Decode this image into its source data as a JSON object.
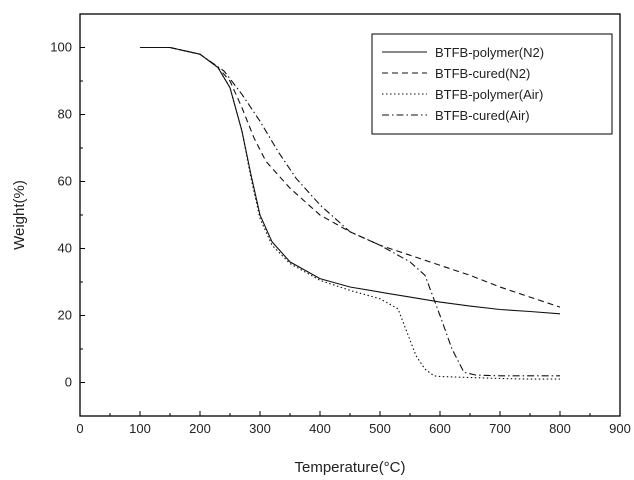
{
  "chart_data": {
    "type": "line",
    "xlabel": "Temperature(°C)",
    "ylabel": "Weight(%)",
    "xlim": [
      0,
      900
    ],
    "ylim": [
      -10,
      110
    ],
    "xticks": [
      0,
      100,
      200,
      300,
      400,
      500,
      600,
      700,
      800,
      900
    ],
    "yticks": [
      0,
      20,
      40,
      60,
      80,
      100
    ],
    "grid": false,
    "legend_position": "top-right",
    "series": [
      {
        "name": "BTFB-polymer(N2)",
        "style": "solid",
        "x": [
          100,
          150,
          200,
          230,
          250,
          270,
          285,
          300,
          320,
          350,
          400,
          450,
          500,
          550,
          600,
          650,
          700,
          750,
          800
        ],
        "y": [
          100,
          100,
          98,
          94,
          88,
          75,
          62,
          50,
          42,
          36,
          31,
          28.5,
          27,
          25.5,
          24,
          22.8,
          21.8,
          21.2,
          20.5
        ]
      },
      {
        "name": "BTFB-cured(N2)",
        "style": "dashed",
        "x": [
          100,
          150,
          200,
          230,
          250,
          270,
          290,
          310,
          330,
          350,
          400,
          450,
          500,
          550,
          600,
          650,
          700,
          750,
          800
        ],
        "y": [
          100,
          100,
          98,
          94,
          90,
          82,
          73,
          66,
          62,
          58,
          50,
          45,
          41,
          38,
          35,
          32,
          28.5,
          25.5,
          22.5
        ]
      },
      {
        "name": "BTFB-polymer(Air)",
        "style": "dotted",
        "x": [
          100,
          150,
          200,
          230,
          250,
          270,
          285,
          300,
          320,
          350,
          400,
          450,
          500,
          530,
          545,
          560,
          575,
          590,
          600,
          650,
          700,
          750,
          800
        ],
        "y": [
          100,
          100,
          98,
          94,
          88,
          75,
          61,
          49,
          41,
          35.5,
          30.5,
          27.5,
          25,
          22,
          15,
          8,
          4,
          2,
          1.8,
          1.5,
          1.2,
          1.0,
          1.0
        ]
      },
      {
        "name": "BTFB-cured(Air)",
        "style": "dash-dot",
        "x": [
          100,
          150,
          200,
          240,
          270,
          300,
          330,
          360,
          400,
          450,
          500,
          550,
          575,
          600,
          620,
          640,
          660,
          700,
          750,
          800
        ],
        "y": [
          100,
          100,
          98,
          93,
          86,
          78,
          69,
          61,
          53,
          45,
          41,
          36,
          32,
          20,
          10,
          3,
          2.2,
          2,
          2,
          2
        ]
      }
    ]
  }
}
